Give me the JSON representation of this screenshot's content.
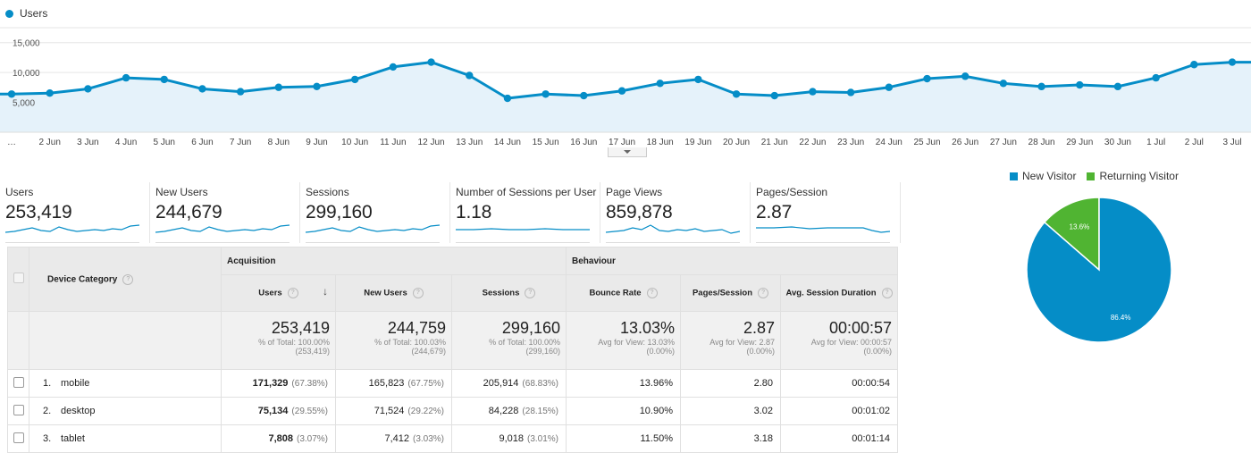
{
  "line_chart": {
    "legend_label": "Users",
    "series_color": "#058dc7",
    "y_ticks": [
      "15,000",
      "10,000",
      "5,000"
    ]
  },
  "chart_data": [
    {
      "type": "line",
      "x": [
        "…",
        "2 Jun",
        "3 Jun",
        "4 Jun",
        "5 Jun",
        "6 Jun",
        "7 Jun",
        "8 Jun",
        "9 Jun",
        "10 Jun",
        "11 Jun",
        "12 Jun",
        "13 Jun",
        "14 Jun",
        "15 Jun",
        "16 Jun",
        "17 Jun",
        "18 Jun",
        "19 Jun",
        "20 Jun",
        "21 Jun",
        "22 Jun",
        "23 Jun",
        "24 Jun",
        "25 Jun",
        "26 Jun",
        "27 Jun",
        "28 Jun",
        "29 Jun",
        "30 Jun",
        "1 Jul",
        "2 Jul",
        "3 Jul"
      ],
      "series": [
        {
          "name": "Users",
          "values": [
            6390,
            6550,
            7260,
            9110,
            8840,
            7260,
            6790,
            7520,
            7660,
            8840,
            10930,
            11730,
            9500,
            5680,
            6390,
            6130,
            6920,
            8180,
            8840,
            6390,
            6130,
            6790,
            6660,
            7520,
            8970,
            9370,
            8180,
            7650,
            7920,
            7650,
            9110,
            11330,
            11730
          ]
        }
      ],
      "ylim": [
        0,
        17500
      ],
      "grid": true
    },
    {
      "type": "pie",
      "categories": [
        "New Visitor",
        "Returning Visitor"
      ],
      "values": [
        86.4,
        13.6
      ],
      "slice_labels": [
        "86.4%",
        "13.6%"
      ],
      "colors": [
        "#058dc7",
        "#50b432"
      ],
      "legend": "top"
    }
  ],
  "scorecards": [
    {
      "label": "Users",
      "value": "253,419"
    },
    {
      "label": "New Users",
      "value": "244,679"
    },
    {
      "label": "Sessions",
      "value": "299,160"
    },
    {
      "label": "Number of Sessions per User",
      "value": "1.18"
    },
    {
      "label": "Page Views",
      "value": "859,878"
    },
    {
      "label": "Pages/Session",
      "value": "2.87"
    }
  ],
  "table": {
    "dimension_header": "Device Category",
    "group_acquisition": "Acquisition",
    "group_behaviour": "Behaviour",
    "help_glyph": "?",
    "sort_glyph": "↓",
    "columns": [
      "Users",
      "New Users",
      "Sessions",
      "Bounce Rate",
      "Pages/Session",
      "Avg. Session Duration"
    ],
    "totals": [
      {
        "value": "253,419",
        "sub1": "% of Total: 100.00%",
        "sub2": "(253,419)"
      },
      {
        "value": "244,759",
        "sub1": "% of Total: 100.03%",
        "sub2": "(244,679)"
      },
      {
        "value": "299,160",
        "sub1": "% of Total: 100.00%",
        "sub2": "(299,160)"
      },
      {
        "value": "13.03%",
        "sub1": "Avg for View: 13.03%",
        "sub2": "(0.00%)"
      },
      {
        "value": "2.87",
        "sub1": "Avg for View: 2.87",
        "sub2": "(0.00%)"
      },
      {
        "value": "00:00:57",
        "sub1": "Avg for View: 00:00:57",
        "sub2": "(0.00%)"
      }
    ],
    "rows": [
      {
        "index": "1.",
        "device": "mobile",
        "users": "171,329",
        "users_pct": "(67.38%)",
        "new_users": "165,823",
        "new_users_pct": "(67.75%)",
        "sessions": "205,914",
        "sessions_pct": "(68.83%)",
        "bounce": "13.96%",
        "pages": "2.80",
        "duration": "00:00:54"
      },
      {
        "index": "2.",
        "device": "desktop",
        "users": "75,134",
        "users_pct": "(29.55%)",
        "new_users": "71,524",
        "new_users_pct": "(29.22%)",
        "sessions": "84,228",
        "sessions_pct": "(28.15%)",
        "bounce": "10.90%",
        "pages": "3.02",
        "duration": "00:01:02"
      },
      {
        "index": "3.",
        "device": "tablet",
        "users": "7,808",
        "users_pct": "(3.07%)",
        "new_users": "7,412",
        "new_users_pct": "(3.03%)",
        "sessions": "9,018",
        "sessions_pct": "(3.01%)",
        "bounce": "11.50%",
        "pages": "3.18",
        "duration": "00:01:14"
      }
    ]
  }
}
